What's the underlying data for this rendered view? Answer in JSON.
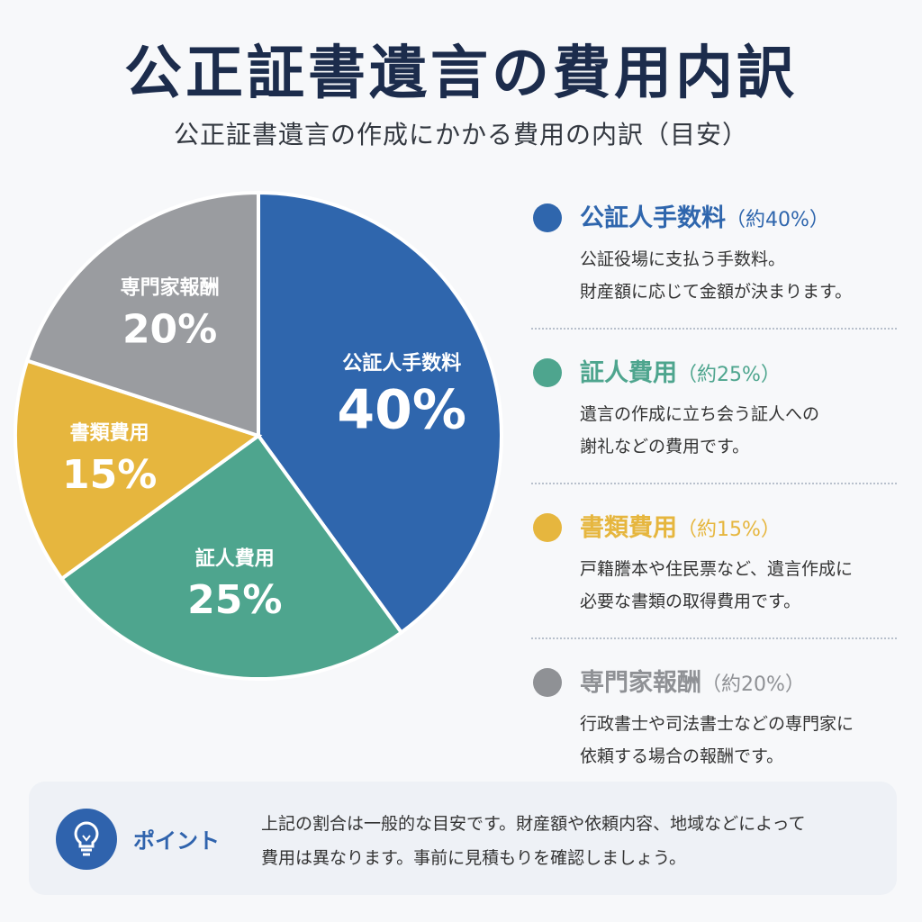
{
  "title": "公正証書遺言の費用内訳",
  "subtitle": "公正証書遺言の作成にかかる費用の内訳（目安）",
  "chart_data": {
    "type": "pie",
    "title": "公正証書遺言の費用内訳",
    "slices": [
      {
        "label": "公証人手数料",
        "value": 40,
        "value_label": "40%",
        "color": "#2f66ad"
      },
      {
        "label": "証人費用",
        "value": 25,
        "value_label": "25%",
        "color": "#4ea58e"
      },
      {
        "label": "書類費用",
        "value": 15,
        "value_label": "15%",
        "color": "#e6b63e"
      },
      {
        "label": "専門家報酬",
        "value": 20,
        "value_label": "20%",
        "color": "#9a9ca0"
      }
    ],
    "start": "12 o'clock",
    "direction": "clockwise",
    "legend_position": "right"
  },
  "legend": [
    {
      "name": "公証人手数料",
      "pct": "（約40%）",
      "color": "#2f66ad",
      "desc1": "公証役場に支払う手数料。",
      "desc2": "財産額に応じて金額が決まります。"
    },
    {
      "name": "証人費用",
      "pct": "（約25%）",
      "color": "#4ea58e",
      "desc1": "遺言の作成に立ち会う証人への",
      "desc2": "謝礼などの費用です。"
    },
    {
      "name": "書類費用",
      "pct": "（約15%）",
      "color": "#e6b63e",
      "desc1": "戸籍謄本や住民票など、遺言作成に",
      "desc2": "必要な書類の取得費用です。"
    },
    {
      "name": "専門家報酬",
      "pct": "（約20%）",
      "color": "#8f9195",
      "desc1": "行政書士や司法書士などの専門家に",
      "desc2": "依頼する場合の報酬です。"
    }
  ],
  "point": {
    "icon": "lightbulb-icon",
    "label": "ポイント",
    "text1": "上記の割合は一般的な目安です。財産額や依頼内容、地域などによって",
    "text2": "費用は異なります。事前に見積もりを確認しましょう。"
  }
}
